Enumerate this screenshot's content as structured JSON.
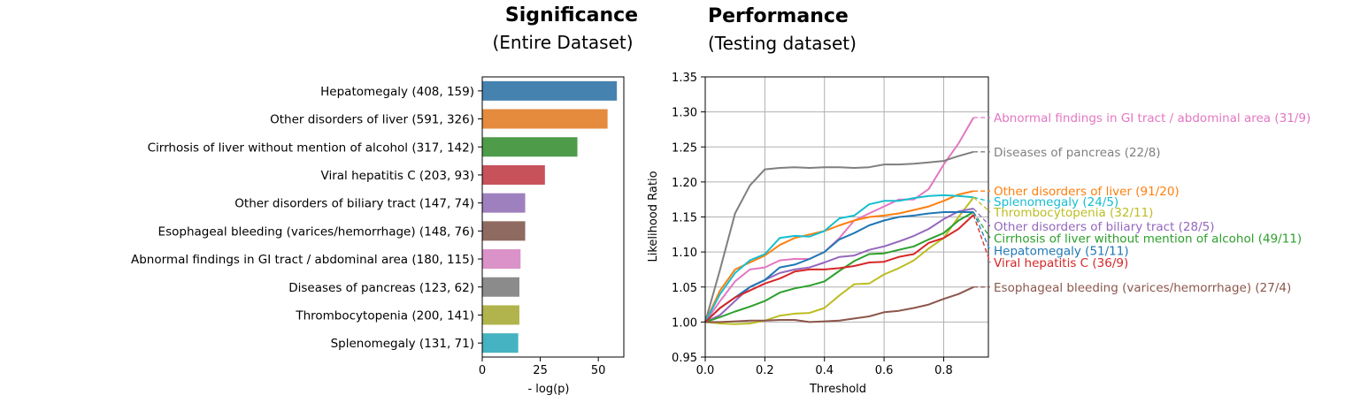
{
  "chart_data": [
    {
      "type": "bar",
      "orientation": "horizontal",
      "title": "Significance",
      "subtitle": "(Entire Dataset)",
      "xlabel": "- log(p)",
      "ylabel": "",
      "xlim": [
        0,
        61
      ],
      "xticks": [
        0,
        25,
        50
      ],
      "grid": false,
      "categories": [
        "Hepatomegaly (408, 159)",
        "Other disorders of liver (591, 326)",
        "Cirrhosis of liver without mention of alcohol (317, 142)",
        "Viral hepatitis C (203, 93)",
        "Other disorders of biliary tract (147, 74)",
        "Esophageal bleeding (varices/hemorrhage) (148, 76)",
        "Abnormal findings in GI tract / abdominal area (180, 115)",
        "Diseases of pancreas (123, 62)",
        "Thrombocytopenia (200, 141)",
        "Splenomegaly (131, 71)"
      ],
      "values": [
        58,
        54,
        41,
        27,
        18.5,
        18.5,
        16.5,
        16,
        16,
        15.5
      ],
      "colors": [
        "#4682b0",
        "#e48b3e",
        "#4e9c4a",
        "#c8525a",
        "#9e80bf",
        "#8f6a60",
        "#da92c8",
        "#8b8b8b",
        "#b1b44d",
        "#45b3c1"
      ]
    },
    {
      "type": "line",
      "title": "Performance",
      "subtitle": "(Testing dataset)",
      "xlabel": "Threshold",
      "ylabel": "Likelihood Ratio",
      "xlim": [
        0.0,
        0.95
      ],
      "ylim": [
        0.95,
        1.35
      ],
      "xticks": [
        0.0,
        0.2,
        0.4,
        0.6,
        0.8
      ],
      "xtick_labels": [
        "0.0",
        "0.2",
        "0.4",
        "0.6",
        "0.8"
      ],
      "yticks": [
        0.95,
        1.0,
        1.05,
        1.1,
        1.15,
        1.2,
        1.25,
        1.3,
        1.35
      ],
      "ytick_labels": [
        "0.95",
        "1.00",
        "1.05",
        "1.10",
        "1.15",
        "1.20",
        "1.25",
        "1.30",
        "1.35"
      ],
      "grid": true,
      "x": [
        0.0,
        0.05,
        0.1,
        0.15,
        0.2,
        0.25,
        0.3,
        0.35,
        0.4,
        0.45,
        0.5,
        0.55,
        0.6,
        0.65,
        0.7,
        0.75,
        0.8,
        0.85,
        0.9
      ],
      "series": [
        {
          "name": "Abnormal findings in GI tract / abdominal area (31/9)",
          "color": "#e377c2",
          "label_value": 1.292,
          "values": [
            1.0,
            1.03,
            1.058,
            1.075,
            1.078,
            1.088,
            1.09,
            1.09,
            1.1,
            1.12,
            1.145,
            1.155,
            1.165,
            1.175,
            1.175,
            1.19,
            1.225,
            1.255,
            1.292
          ]
        },
        {
          "name": "Diseases of pancreas (22/8)",
          "color": "#7f7f7f",
          "label_value": 1.243,
          "values": [
            1.0,
            1.075,
            1.155,
            1.195,
            1.218,
            1.22,
            1.221,
            1.22,
            1.221,
            1.221,
            1.22,
            1.221,
            1.225,
            1.225,
            1.226,
            1.228,
            1.23,
            1.237,
            1.243
          ]
        },
        {
          "name": "Other disorders of liver (91/20)",
          "color": "#ff7f0e",
          "label_value": 1.187,
          "values": [
            1.0,
            1.045,
            1.075,
            1.085,
            1.095,
            1.11,
            1.12,
            1.125,
            1.13,
            1.138,
            1.145,
            1.15,
            1.152,
            1.155,
            1.16,
            1.165,
            1.173,
            1.182,
            1.187
          ]
        },
        {
          "name": "Splenomegaly (24/5)",
          "color": "#17becf",
          "label_value": 1.172,
          "values": [
            1.0,
            1.04,
            1.07,
            1.088,
            1.097,
            1.12,
            1.123,
            1.122,
            1.13,
            1.148,
            1.152,
            1.168,
            1.173,
            1.173,
            1.177,
            1.18,
            1.181,
            1.18,
            1.178
          ]
        },
        {
          "name": "Thrombocytopenia (32/11)",
          "color": "#bcbd22",
          "label_value": 1.157,
          "values": [
            1.0,
            0.998,
            0.997,
            0.998,
            1.002,
            1.009,
            1.012,
            1.013,
            1.02,
            1.038,
            1.054,
            1.055,
            1.068,
            1.077,
            1.088,
            1.105,
            1.12,
            1.15,
            1.178
          ]
        },
        {
          "name": "Other disorders of biliary tract (28/5)",
          "color": "#9467bd",
          "label_value": 1.137,
          "values": [
            1.0,
            1.01,
            1.03,
            1.05,
            1.06,
            1.07,
            1.075,
            1.078,
            1.085,
            1.093,
            1.095,
            1.103,
            1.108,
            1.115,
            1.123,
            1.133,
            1.147,
            1.158,
            1.162
          ]
        },
        {
          "name": "Cirrhosis of liver without mention of alcohol (49/11)",
          "color": "#2ca02c",
          "label_value": 1.12,
          "values": [
            1.0,
            1.007,
            1.015,
            1.022,
            1.03,
            1.042,
            1.048,
            1.052,
            1.058,
            1.073,
            1.087,
            1.097,
            1.098,
            1.103,
            1.108,
            1.118,
            1.127,
            1.145,
            1.157
          ]
        },
        {
          "name": "Hepatomegaly (51/11)",
          "color": "#1f77b4",
          "label_value": 1.102,
          "values": [
            1.0,
            1.02,
            1.035,
            1.05,
            1.06,
            1.078,
            1.082,
            1.09,
            1.1,
            1.118,
            1.127,
            1.138,
            1.145,
            1.15,
            1.152,
            1.155,
            1.157,
            1.157,
            1.157
          ]
        },
        {
          "name": "Viral hepatitis C (36/9)",
          "color": "#d62728",
          "label_value": 1.085,
          "values": [
            1.0,
            1.02,
            1.035,
            1.045,
            1.055,
            1.062,
            1.072,
            1.075,
            1.075,
            1.077,
            1.08,
            1.085,
            1.086,
            1.093,
            1.097,
            1.113,
            1.12,
            1.133,
            1.153
          ]
        },
        {
          "name": "Esophageal bleeding (varices/hemorrhage) (27/4)",
          "color": "#8c564b",
          "label_value": 1.05,
          "values": [
            1.0,
            1.0,
            1.001,
            1.002,
            1.002,
            1.003,
            1.003,
            1.0,
            1.001,
            1.002,
            1.005,
            1.008,
            1.014,
            1.016,
            1.02,
            1.025,
            1.033,
            1.04,
            1.05
          ]
        }
      ]
    }
  ]
}
